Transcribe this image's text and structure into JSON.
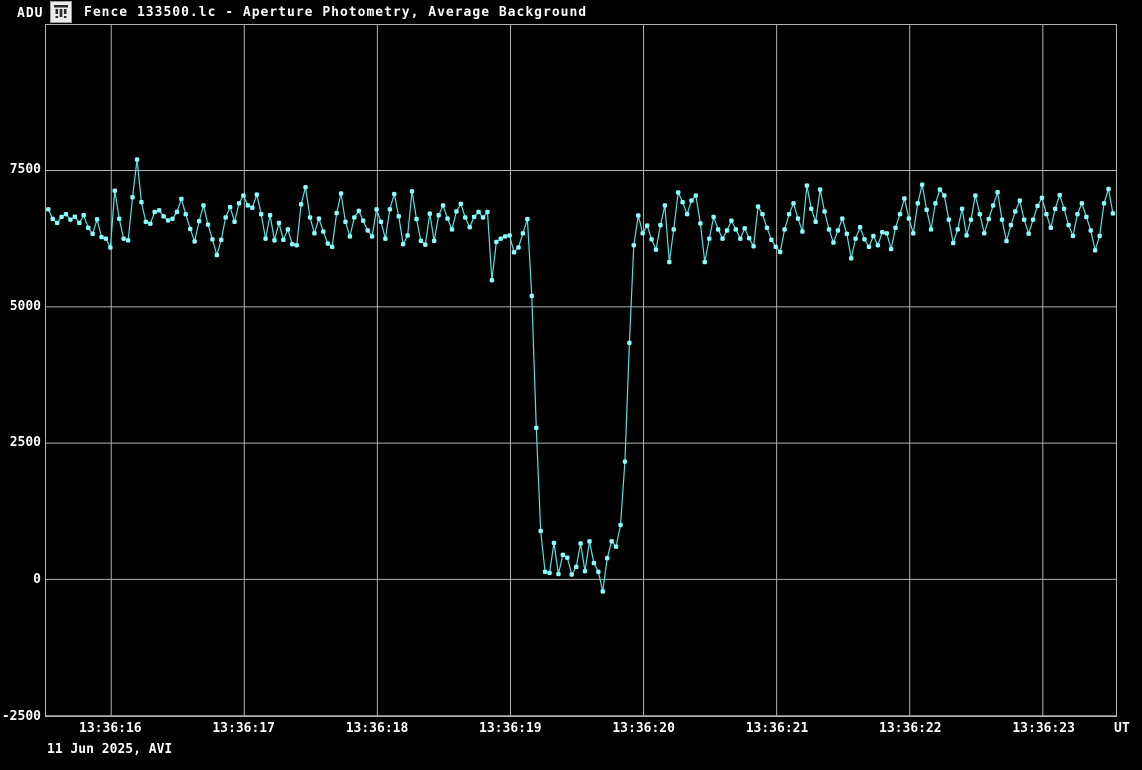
{
  "window": {
    "title": "Fence 133500.lc - Aperture Photometry, Average Background",
    "icon": "bar-chart-app-icon"
  },
  "chart_data": {
    "type": "line",
    "title": "Fence 133500.lc - Aperture Photometry, Average Background",
    "ylabel": "ADU",
    "x_unit": "UT",
    "footer": "11 Jun 2025, AVI",
    "description": "Occultation light curve: aperture photometry intensity (ADU) vs UT time; deep drop (occultation) between about 13:36:19.2 and 13:36:19.9",
    "grid": true,
    "legend": false,
    "ylim": [
      -2505,
      10170
    ],
    "y_ticks": [
      7500,
      5000,
      2500,
      0,
      -2500
    ],
    "x_range_seconds": [
      15.51,
      23.55
    ],
    "x_ticks": [
      {
        "seconds": 16,
        "label": "13:36:16"
      },
      {
        "seconds": 17,
        "label": "13:36:17"
      },
      {
        "seconds": 18,
        "label": "13:36:18"
      },
      {
        "seconds": 19,
        "label": "13:36:19"
      },
      {
        "seconds": 20,
        "label": "13:36:20"
      },
      {
        "seconds": 21,
        "label": "13:36:21"
      },
      {
        "seconds": 22,
        "label": "13:36:22"
      },
      {
        "seconds": 23,
        "label": "13:36:23"
      }
    ],
    "colors": {
      "background": "#000000",
      "grid": "#b2b2b2",
      "curve": "#55e0e0",
      "marker": "#87ffff",
      "text": "#ffffff"
    },
    "series": {
      "name": "light-curve",
      "t0_seconds": 15.527,
      "dt_seconds": 0.033333,
      "values": [
        6790,
        6615,
        6540,
        6650,
        6700,
        6600,
        6655,
        6540,
        6680,
        6450,
        6340,
        6605,
        6280,
        6250,
        6090,
        7130,
        6615,
        6250,
        6220,
        7010,
        7700,
        6920,
        6560,
        6525,
        6740,
        6770,
        6660,
        6585,
        6615,
        6740,
        6980,
        6700,
        6430,
        6200,
        6570,
        6860,
        6510,
        6240,
        5950,
        6230,
        6640,
        6830,
        6560,
        6900,
        7040,
        6860,
        6820,
        7060,
        6700,
        6250,
        6680,
        6220,
        6540,
        6230,
        6420,
        6150,
        6130,
        6880,
        7195,
        6640,
        6350,
        6620,
        6380,
        6160,
        6100,
        6720,
        7080,
        6560,
        6290,
        6640,
        6760,
        6580,
        6400,
        6290,
        6790,
        6560,
        6250,
        6790,
        7070,
        6660,
        6150,
        6310,
        7120,
        6610,
        6210,
        6140,
        6710,
        6210,
        6680,
        6860,
        6620,
        6420,
        6750,
        6890,
        6640,
        6460,
        6650,
        6740,
        6640,
        6740,
        5490,
        6190,
        6250,
        6290,
        6310,
        6000,
        6090,
        6350,
        6610,
        5200,
        2780,
        890,
        140,
        120,
        670,
        100,
        450,
        400,
        90,
        230,
        660,
        150,
        700,
        300,
        140,
        -220,
        390,
        700,
        600,
        1000,
        2160,
        4340,
        6130,
        6677,
        6350,
        6490,
        6240,
        6050,
        6500,
        6860,
        5820,
        6420,
        7100,
        6920,
        6700,
        6950,
        7040,
        6530,
        5820,
        6250,
        6650,
        6420,
        6250,
        6400,
        6580,
        6420,
        6250,
        6440,
        6260,
        6110,
        6840,
        6700,
        6450,
        6230,
        6100,
        6005,
        6420,
        6700,
        6900,
        6620,
        6380,
        7225,
        6800,
        6560,
        7150,
        6750,
        6420,
        6180,
        6400,
        6620,
        6340,
        5890,
        6250,
        6460,
        6240,
        6100,
        6300,
        6130,
        6370,
        6350,
        6060,
        6450,
        6700,
        6990,
        6620,
        6350,
        6900,
        7240,
        6780,
        6420,
        6900,
        7152,
        7043,
        6600,
        6170,
        6420,
        6800,
        6311,
        6600,
        7043,
        6700,
        6350,
        6610,
        6860,
        7103,
        6600,
        6207,
        6500,
        6750,
        6950,
        6600,
        6341,
        6600,
        6850,
        7000,
        6700,
        6450,
        6800,
        7050,
        6800,
        6500,
        6300,
        6700,
        6900,
        6650,
        6400,
        6037,
        6300,
        6900,
        7164,
        6713
      ]
    }
  }
}
